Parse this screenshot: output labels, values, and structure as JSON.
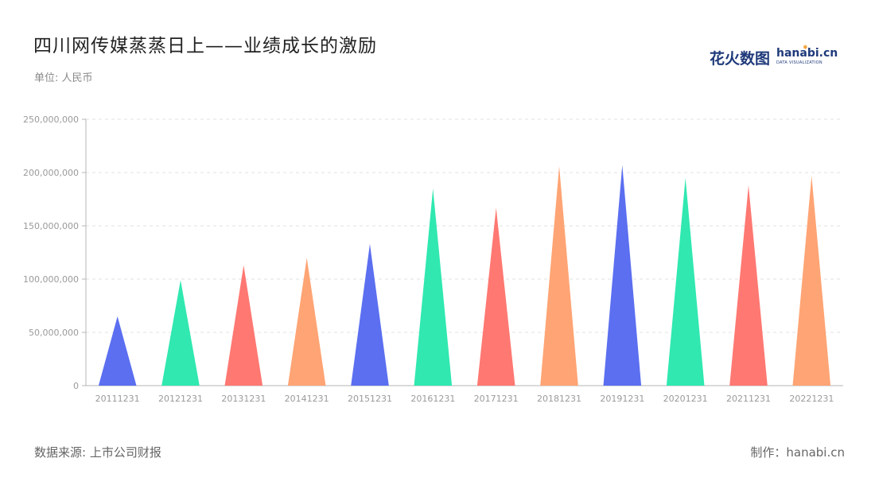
{
  "title": "四川网传媒蒸蒸日上——业绩成长的激励",
  "unit": "单位: 人民币",
  "logo": {
    "zh": "花火数图",
    "en": "hanabi.cn",
    "sub": "DATA VISUALIZATION"
  },
  "footer": {
    "source": "数据来源: 上市公司财报",
    "maker": "制作：hanabi.cn"
  },
  "chart_data": {
    "type": "bar",
    "mark_shape": "triangle",
    "categories": [
      "20111231",
      "20121231",
      "20131231",
      "20141231",
      "20151231",
      "20161231",
      "20171231",
      "20181231",
      "20191231",
      "20201231",
      "20211231",
      "20221231"
    ],
    "values": [
      65000000,
      99000000,
      113000000,
      120000000,
      133000000,
      185000000,
      167000000,
      206000000,
      207000000,
      195000000,
      188000000,
      197000000
    ],
    "colors": [
      "#5b6ff0",
      "#30e8b0",
      "#ff7872",
      "#ffa474",
      "#5b6ff0",
      "#30e8b0",
      "#ff7872",
      "#ffa474",
      "#5b6ff0",
      "#30e8b0",
      "#ff7872",
      "#ffa474"
    ],
    "y_ticks": [
      0,
      50000000,
      100000000,
      150000000,
      200000000,
      250000000
    ],
    "y_tick_labels": [
      "0",
      "50,000,000",
      "100,000,000",
      "150,000,000",
      "200,000,000",
      "250,000,000"
    ],
    "ylim": [
      0,
      250000000
    ],
    "grid": true,
    "legend": "none"
  }
}
